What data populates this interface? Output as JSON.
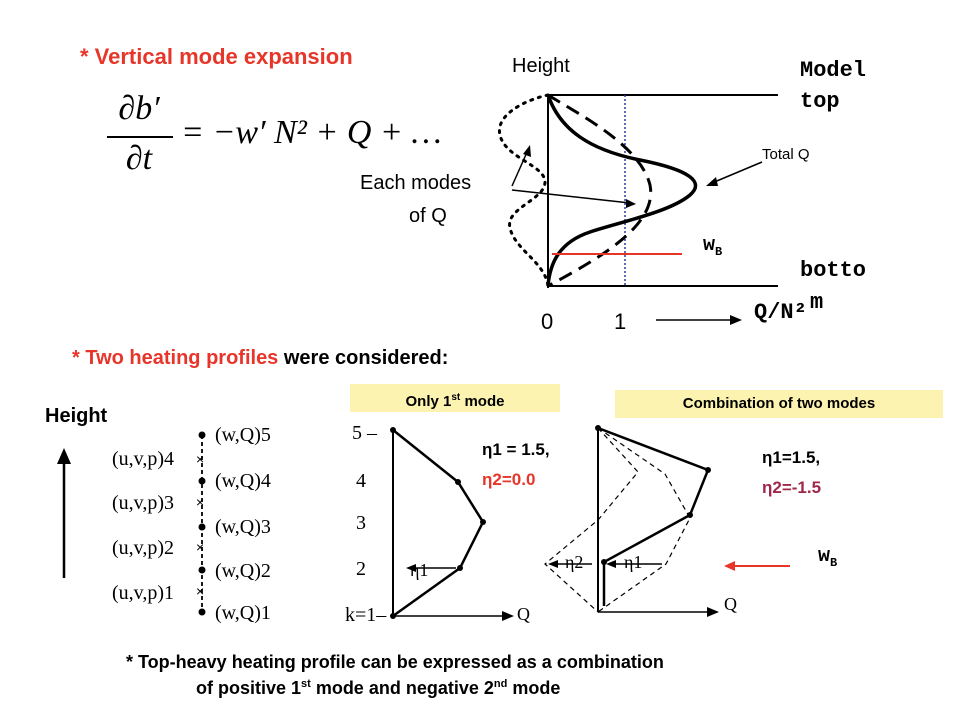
{
  "title_vertical": "* Vertical mode expansion",
  "equation": {
    "num_d": "∂",
    "num_var": "b′",
    "den": "∂t",
    "rhs": "= −w′ N² + Q + …"
  },
  "top_diagram": {
    "height_label": "Height",
    "model_top": [
      "Model",
      "top"
    ],
    "bottom": [
      "botto",
      "m"
    ],
    "total_q": "Total Q",
    "each_modes": [
      "Each modes",
      "of Q"
    ],
    "wb": "w",
    "wb_sub": "B",
    "tick0": "0",
    "tick1": "1",
    "xaxis": "Q/N²"
  },
  "heading_two": {
    "red": "* Two heating profiles",
    "black": " were considered:"
  },
  "grid": {
    "height_label": "Height",
    "levels_wq": [
      "(w,Q)5",
      "(w,Q)4",
      "(w,Q)3",
      "(w,Q)2",
      "(w,Q)1"
    ],
    "levels_uvp": [
      "(u,v,p)4",
      "(u,v,p)3",
      "(u,v,p)2",
      "(u,v,p)1"
    ]
  },
  "profile1": {
    "title_pre": "Only 1",
    "title_sup": "st",
    "title_post": " mode",
    "ticks": [
      "5 –",
      "4",
      "3",
      "2",
      "k=1–"
    ],
    "eta1_label": "η1",
    "q_label": "Q",
    "eta1_val": "η1 = 1.5,",
    "eta2_val": "η2=0.0"
  },
  "profile2": {
    "title": "Combination of two modes",
    "eta1_label": "η1",
    "eta2_label": "η2",
    "q_label": "Q",
    "eta1_val": "η1=1.5,",
    "eta2_val": "η2=-1.5",
    "wb": "w",
    "wb_sub": "B"
  },
  "footnote": {
    "line1": "* Top-heavy heating profile can be expressed as a combination",
    "line2_pre": "of positive 1",
    "line2_sup1": "st",
    "line2_mid": " mode and negative 2",
    "line2_sup2": "nd",
    "line2_post": " mode"
  },
  "colors": {
    "red": "#e8352a",
    "eta2": "#a0284a",
    "navy": "#2a3a9a",
    "highlight": "#fdf3b0"
  }
}
